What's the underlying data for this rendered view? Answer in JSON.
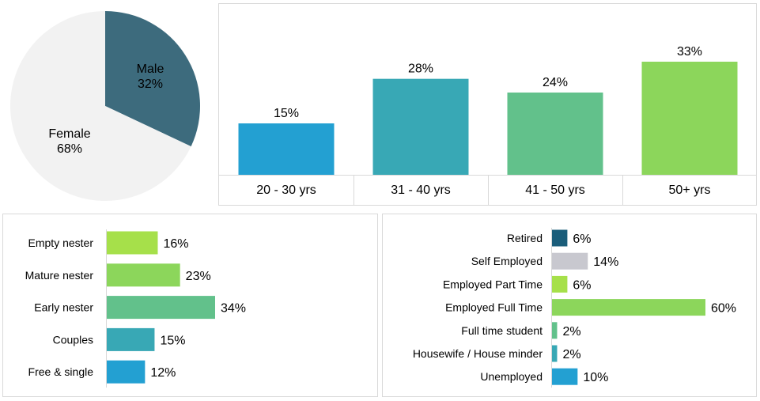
{
  "chart_data": [
    {
      "type": "pie",
      "slices": [
        {
          "label": "Male",
          "value": 32,
          "value_label": "32%",
          "color": "#3d6b7d"
        },
        {
          "label": "Female",
          "value": 68,
          "value_label": "68%",
          "color": "#f2f2f2"
        }
      ]
    },
    {
      "type": "bar",
      "orientation": "vertical",
      "categories": [
        "20 - 30 yrs",
        "31 - 40 yrs",
        "41 - 50 yrs",
        "50+ yrs"
      ],
      "values": [
        15,
        28,
        24,
        33
      ],
      "value_labels": [
        "15%",
        "28%",
        "24%",
        "33%"
      ],
      "colors": [
        "#23a0d2",
        "#38a8b5",
        "#62c18b",
        "#8cd65b"
      ],
      "ylim": [
        0,
        33
      ]
    },
    {
      "type": "bar",
      "orientation": "horizontal",
      "categories": [
        "Empty nester",
        "Mature nester",
        "Early nester",
        "Couples",
        "Free & single"
      ],
      "values": [
        16,
        23,
        34,
        15,
        12
      ],
      "value_labels": [
        "16%",
        "23%",
        "34%",
        "15%",
        "12%"
      ],
      "colors": [
        "#a6e04a",
        "#8cd65b",
        "#62c18b",
        "#38a8b5",
        "#23a0d2"
      ],
      "xlim": [
        0,
        34
      ]
    },
    {
      "type": "bar",
      "orientation": "horizontal",
      "categories": [
        "Retired",
        "Self Employed",
        "Employed Part Time",
        "Employed Full Time",
        "Full time student",
        "Housewife / House minder",
        "Unemployed"
      ],
      "values": [
        6,
        14,
        6,
        60,
        2,
        2,
        10
      ],
      "value_labels": [
        "6%",
        "14%",
        "6%",
        "60%",
        "2%",
        "2%",
        "10%"
      ],
      "colors": [
        "#1a5d7a",
        "#c8c8cf",
        "#a6e04a",
        "#8cd65b",
        "#62c18b",
        "#38a8b5",
        "#23a0d2"
      ],
      "xlim": [
        0,
        60
      ]
    }
  ]
}
